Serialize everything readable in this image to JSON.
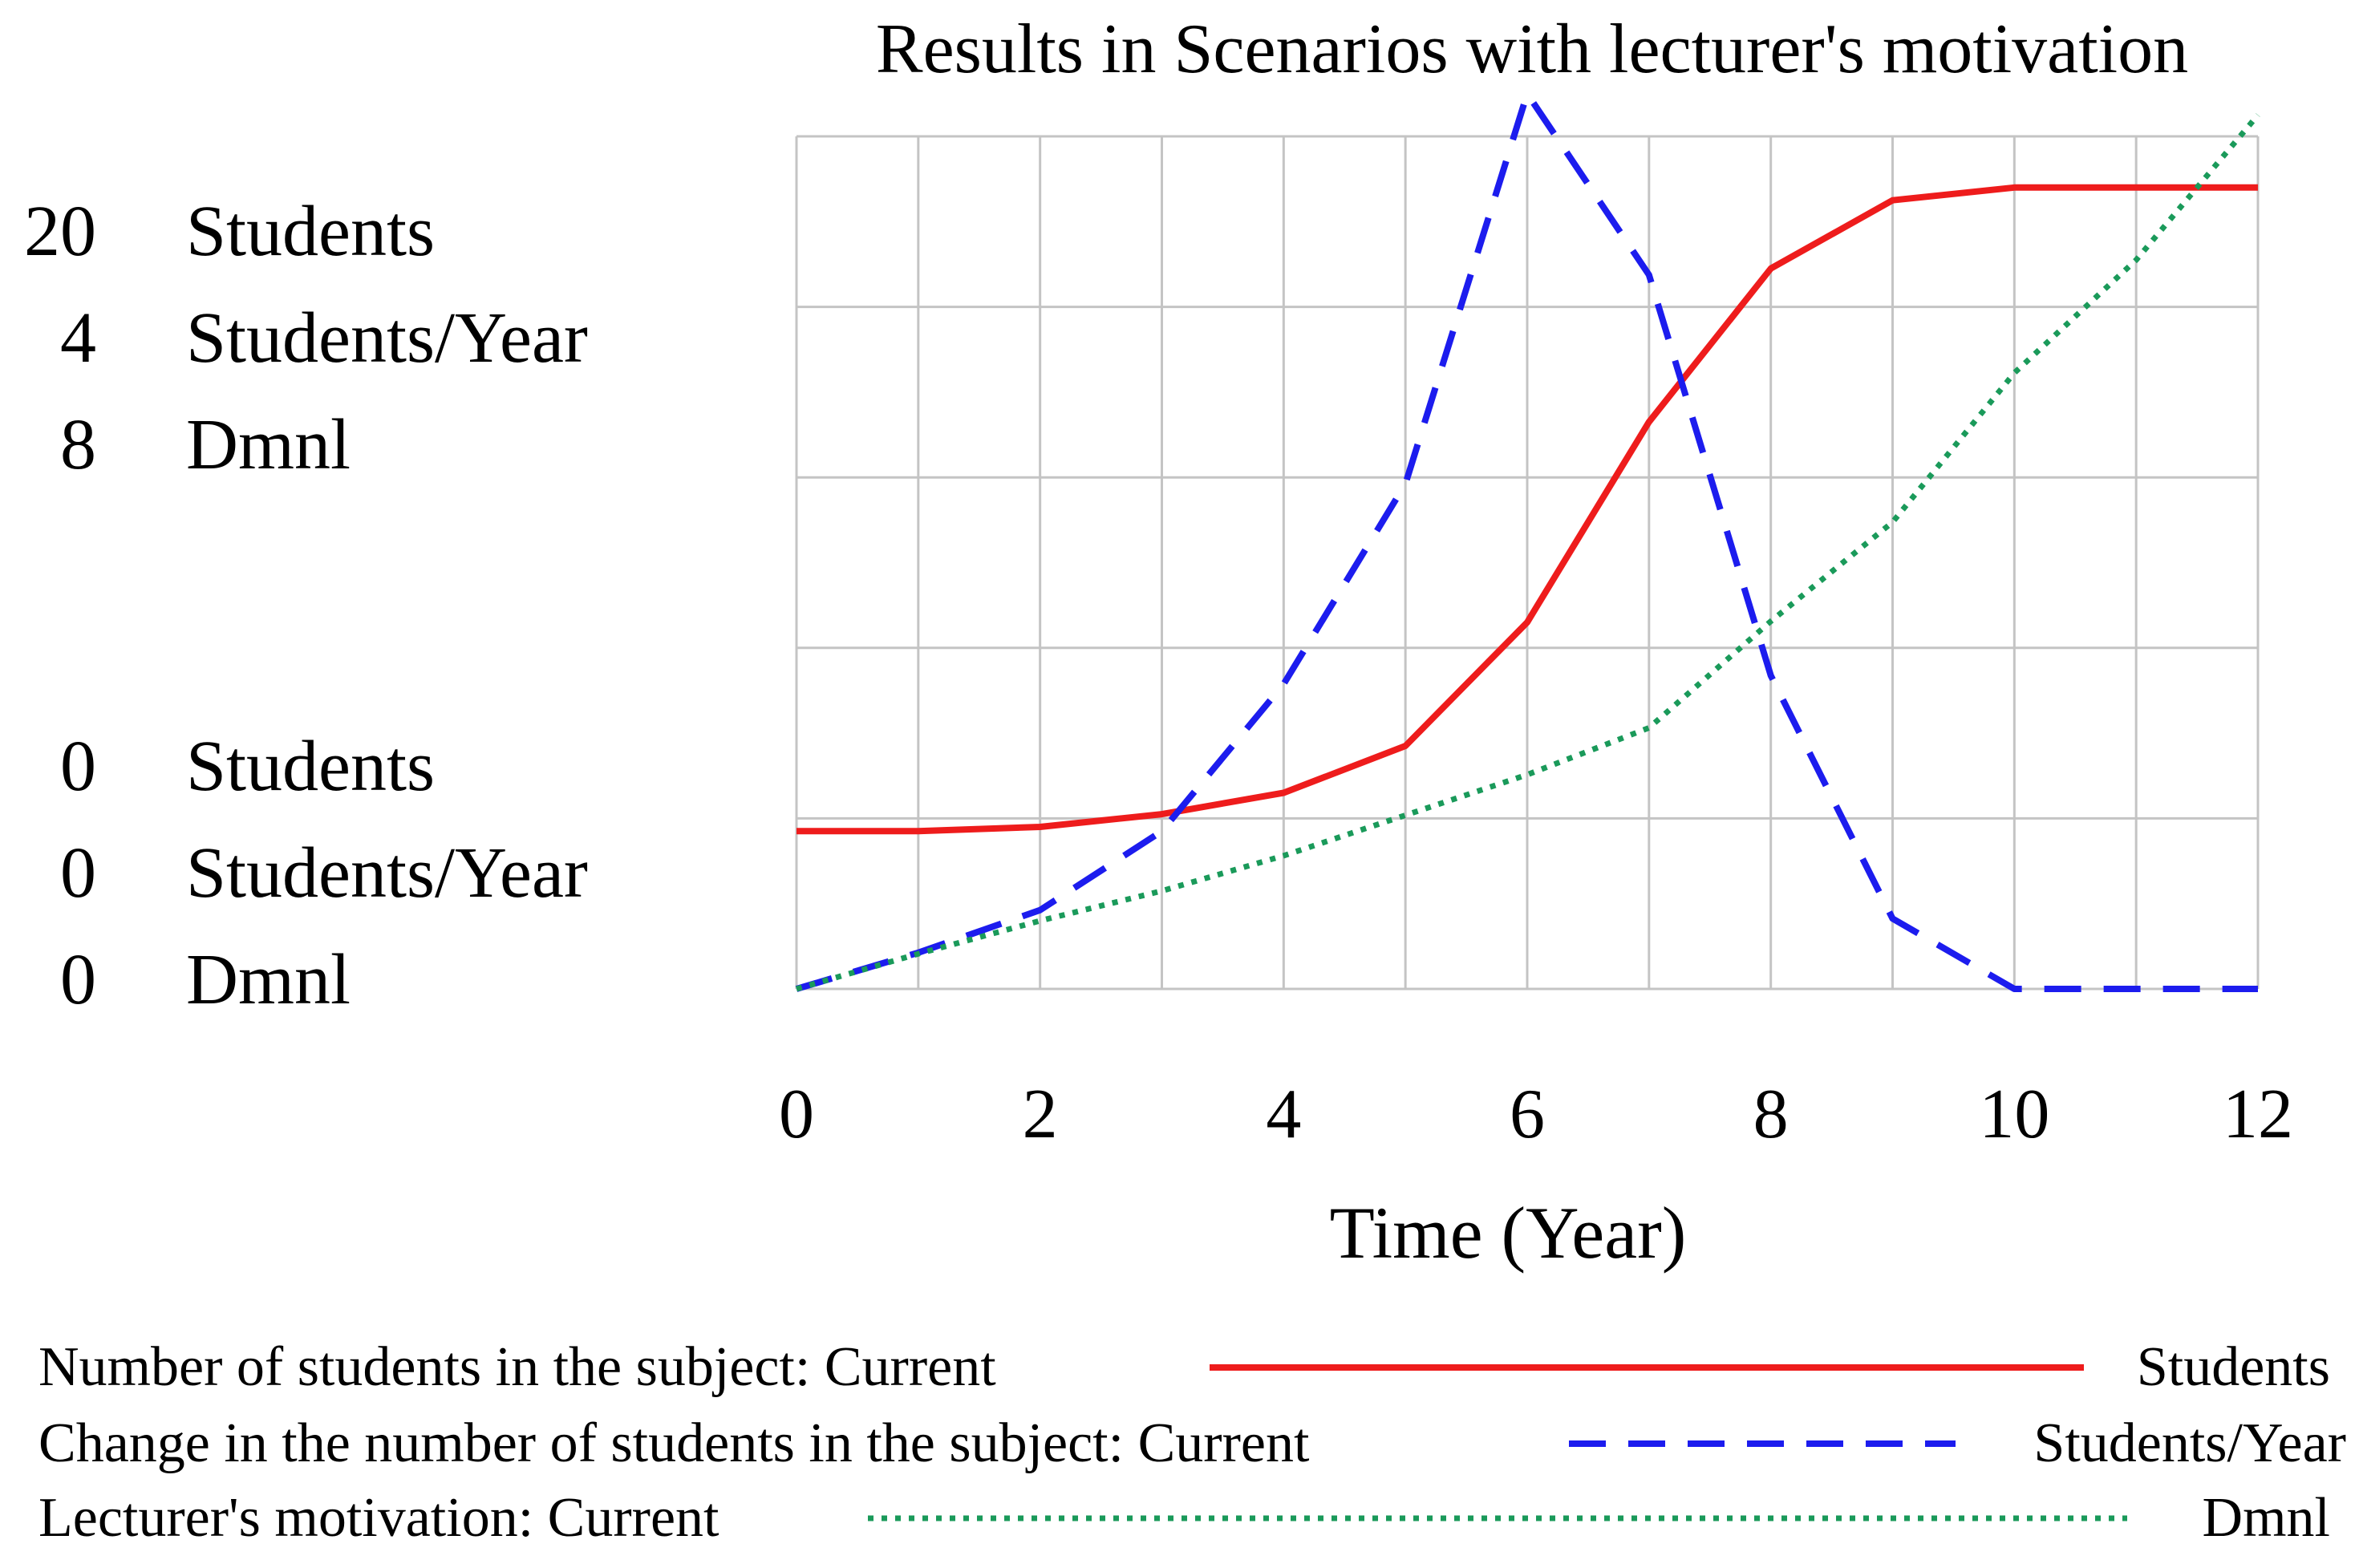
{
  "chart_data": {
    "type": "line",
    "title": "Results in Scenarios with lecturer's motivation",
    "xlabel": "Time (Year)",
    "xlim": [
      0,
      12
    ],
    "x_ticks": [
      "0",
      "2",
      "4",
      "6",
      "8",
      "10",
      "12"
    ],
    "grid": true,
    "legend_position": "bottom",
    "y_axes": [
      {
        "unit": "Students",
        "max_label": "20",
        "min_label": "0",
        "ylim": [
          0,
          20
        ]
      },
      {
        "unit": "Students/Year",
        "max_label": "4",
        "min_label": "0",
        "ylim": [
          0,
          4
        ]
      },
      {
        "unit": "Dmnl",
        "max_label": "8",
        "min_label": "0",
        "ylim": [
          0,
          8
        ]
      }
    ],
    "series": [
      {
        "name": "Number of students in the subject: Current",
        "unit": "Students",
        "axis": 0,
        "color": "#ee1c1c",
        "style": "solid",
        "x": [
          0,
          1,
          2,
          3,
          4,
          5,
          6,
          7,
          8,
          9,
          10,
          11,
          12
        ],
        "values": [
          3.7,
          3.7,
          3.8,
          4.1,
          4.6,
          5.7,
          8.6,
          13.3,
          16.9,
          18.5,
          18.8,
          18.8,
          18.8
        ]
      },
      {
        "name": "Change in the number of students in the subject: Current",
        "unit": "Students/Year",
        "axis": 1,
        "color": "#1c1cee",
        "style": "dashed",
        "x": [
          0,
          1,
          2,
          3,
          4,
          5,
          6,
          7,
          8,
          9,
          10,
          11,
          12
        ],
        "values": [
          0.0,
          0.17,
          0.37,
          0.74,
          1.43,
          2.37,
          4.2,
          3.35,
          1.47,
          0.33,
          0.0,
          0.0,
          0.0
        ]
      },
      {
        "name": "Lecturer's motivation: Current",
        "unit": "Dmnl",
        "axis": 2,
        "color": "#1a9a5a",
        "style": "dotted",
        "x": [
          0,
          1,
          2,
          3,
          4,
          5,
          6,
          7,
          8,
          9,
          10,
          11,
          12
        ],
        "values": [
          0.0,
          0.33,
          0.64,
          0.92,
          1.25,
          1.63,
          2.01,
          2.45,
          3.45,
          4.38,
          5.78,
          6.84,
          8.2
        ]
      }
    ]
  }
}
